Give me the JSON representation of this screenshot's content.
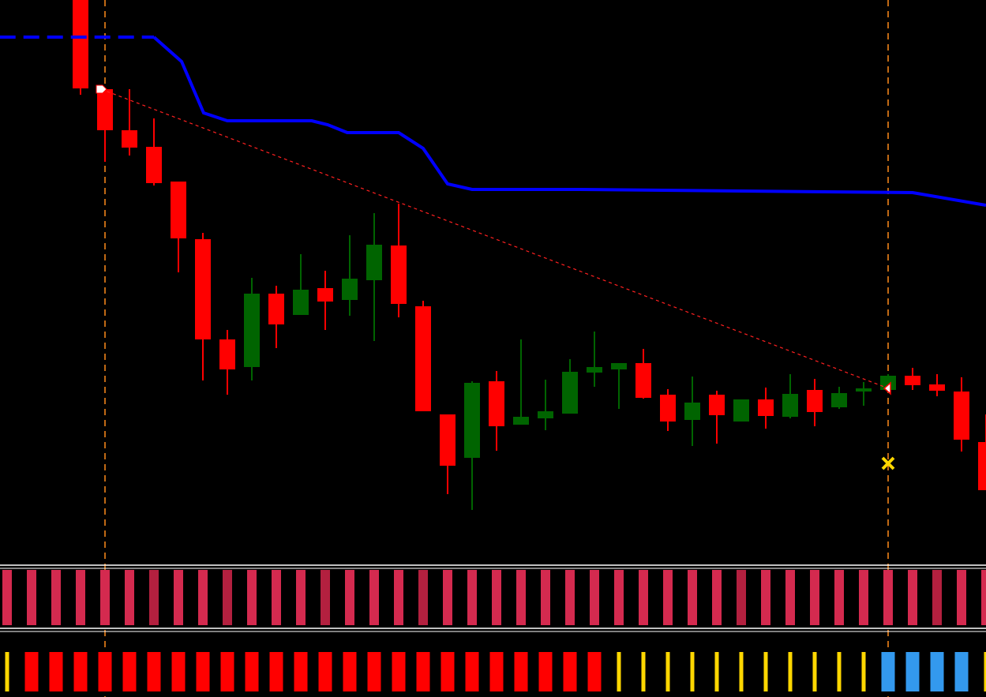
{
  "chart_data": {
    "type": "candlestick",
    "ylim": [
      168,
      883
    ],
    "up_color": "#006400",
    "down_color": "#ff0000",
    "open": [
      883,
      770,
      718,
      697,
      653,
      580,
      453,
      418,
      511,
      484,
      518,
      503,
      528,
      572,
      495,
      358,
      303,
      400,
      345,
      353,
      359,
      411,
      415,
      423,
      383,
      351,
      383,
      349,
      377,
      355,
      389,
      367,
      387,
      389,
      407,
      396,
      387,
      323
    ],
    "high": [
      883,
      770,
      770,
      733,
      653,
      588,
      465,
      531,
      521,
      561,
      540,
      585,
      613,
      625,
      502,
      358,
      400,
      413,
      453,
      402,
      428,
      463,
      423,
      441,
      390,
      406,
      388,
      377,
      392,
      409,
      403,
      393,
      399,
      409,
      417,
      409,
      405,
      358
    ],
    "low": [
      763,
      678,
      686,
      648,
      538,
      401,
      383,
      401,
      442,
      484,
      465,
      483,
      451,
      481,
      362,
      257,
      237,
      312,
      345,
      338,
      359,
      393,
      365,
      378,
      337,
      318,
      321,
      349,
      340,
      353,
      343,
      365,
      369,
      389,
      389,
      381,
      311,
      262
    ],
    "close": [
      771,
      718,
      696,
      651,
      581,
      453,
      415,
      511,
      472,
      516,
      501,
      530,
      573,
      498,
      362,
      293,
      398,
      343,
      355,
      362,
      412,
      418,
      423,
      379,
      349,
      373,
      357,
      377,
      356,
      384,
      361,
      385,
      391,
      407,
      395,
      388,
      326,
      262
    ],
    "lines": [
      {
        "color": "#0000ff",
        "style": "dashed",
        "x": [
          -3.3,
          3
        ],
        "values": [
          836,
          836
        ]
      },
      {
        "color": "#0000ff",
        "style": "solid",
        "x": [
          3,
          4.13,
          5.03,
          6,
          9.45,
          10.1,
          10.9,
          13,
          14,
          15,
          16,
          20.4,
          30.4,
          34,
          37
        ],
        "values": [
          836,
          805,
          740,
          730,
          730,
          725,
          715,
          715,
          695,
          650,
          643,
          643,
          640,
          639,
          623
        ]
      },
      {
        "color": "#ff2020",
        "style": "dotted",
        "x": [
          0.84,
          32.84
        ],
        "values": [
          770,
          393
        ]
      }
    ],
    "vlines": [
      1,
      33
    ],
    "vline_color": "#ff8c1a",
    "cross": {
      "x": 33,
      "value": 296,
      "color": "#ffd700"
    },
    "panel1_colors": [
      "#d42a4f",
      "#d42a4f",
      "#d42a4f",
      "#d42a4f",
      "#d42a4f",
      "#d42a4f",
      "#b3203f",
      "#d42a4f",
      "#d42a4f",
      "#b3203f",
      "#d42a4f",
      "#d42a4f",
      "#d42a4f",
      "#b3203f",
      "#d42a4f",
      "#d42a4f",
      "#d42a4f",
      "#b3203f",
      "#d42a4f",
      "#d42a4f",
      "#d42a4f",
      "#d42a4f",
      "#d42a4f",
      "#d42a4f",
      "#d42a4f",
      "#d42a4f",
      "#d42a4f",
      "#d42a4f",
      "#d42a4f",
      "#d42a4f",
      "#b3203f",
      "#d42a4f",
      "#d42a4f",
      "#d42a4f",
      "#d42a4f",
      "#d42a4f",
      "#d42a4f",
      "#d42a4f",
      "#b3203f",
      "#d42a4f",
      "#d42a4f"
    ],
    "panel2_colors": [
      "#ffd700",
      "#ff0000",
      "#ff0000",
      "#ff0000",
      "#ff0000",
      "#ff0000",
      "#ff0000",
      "#ff0000",
      "#ff0000",
      "#ff0000",
      "#ff0000",
      "#ff0000",
      "#ff0000",
      "#ff0000",
      "#ff0000",
      "#ff0000",
      "#ff0000",
      "#ff0000",
      "#ff0000",
      "#ff0000",
      "#ff0000",
      "#ff0000",
      "#ff0000",
      "#ff0000",
      "#ff0000",
      "#ffd700",
      "#ffd700",
      "#ffd700",
      "#ffd700",
      "#ffd700",
      "#ffd700",
      "#ffd700",
      "#ffd700",
      "#ffd700",
      "#ffd700",
      "#ffd700",
      "#3399ee",
      "#3399ee",
      "#3399ee",
      "#3399ee",
      "#ffd700"
    ]
  }
}
